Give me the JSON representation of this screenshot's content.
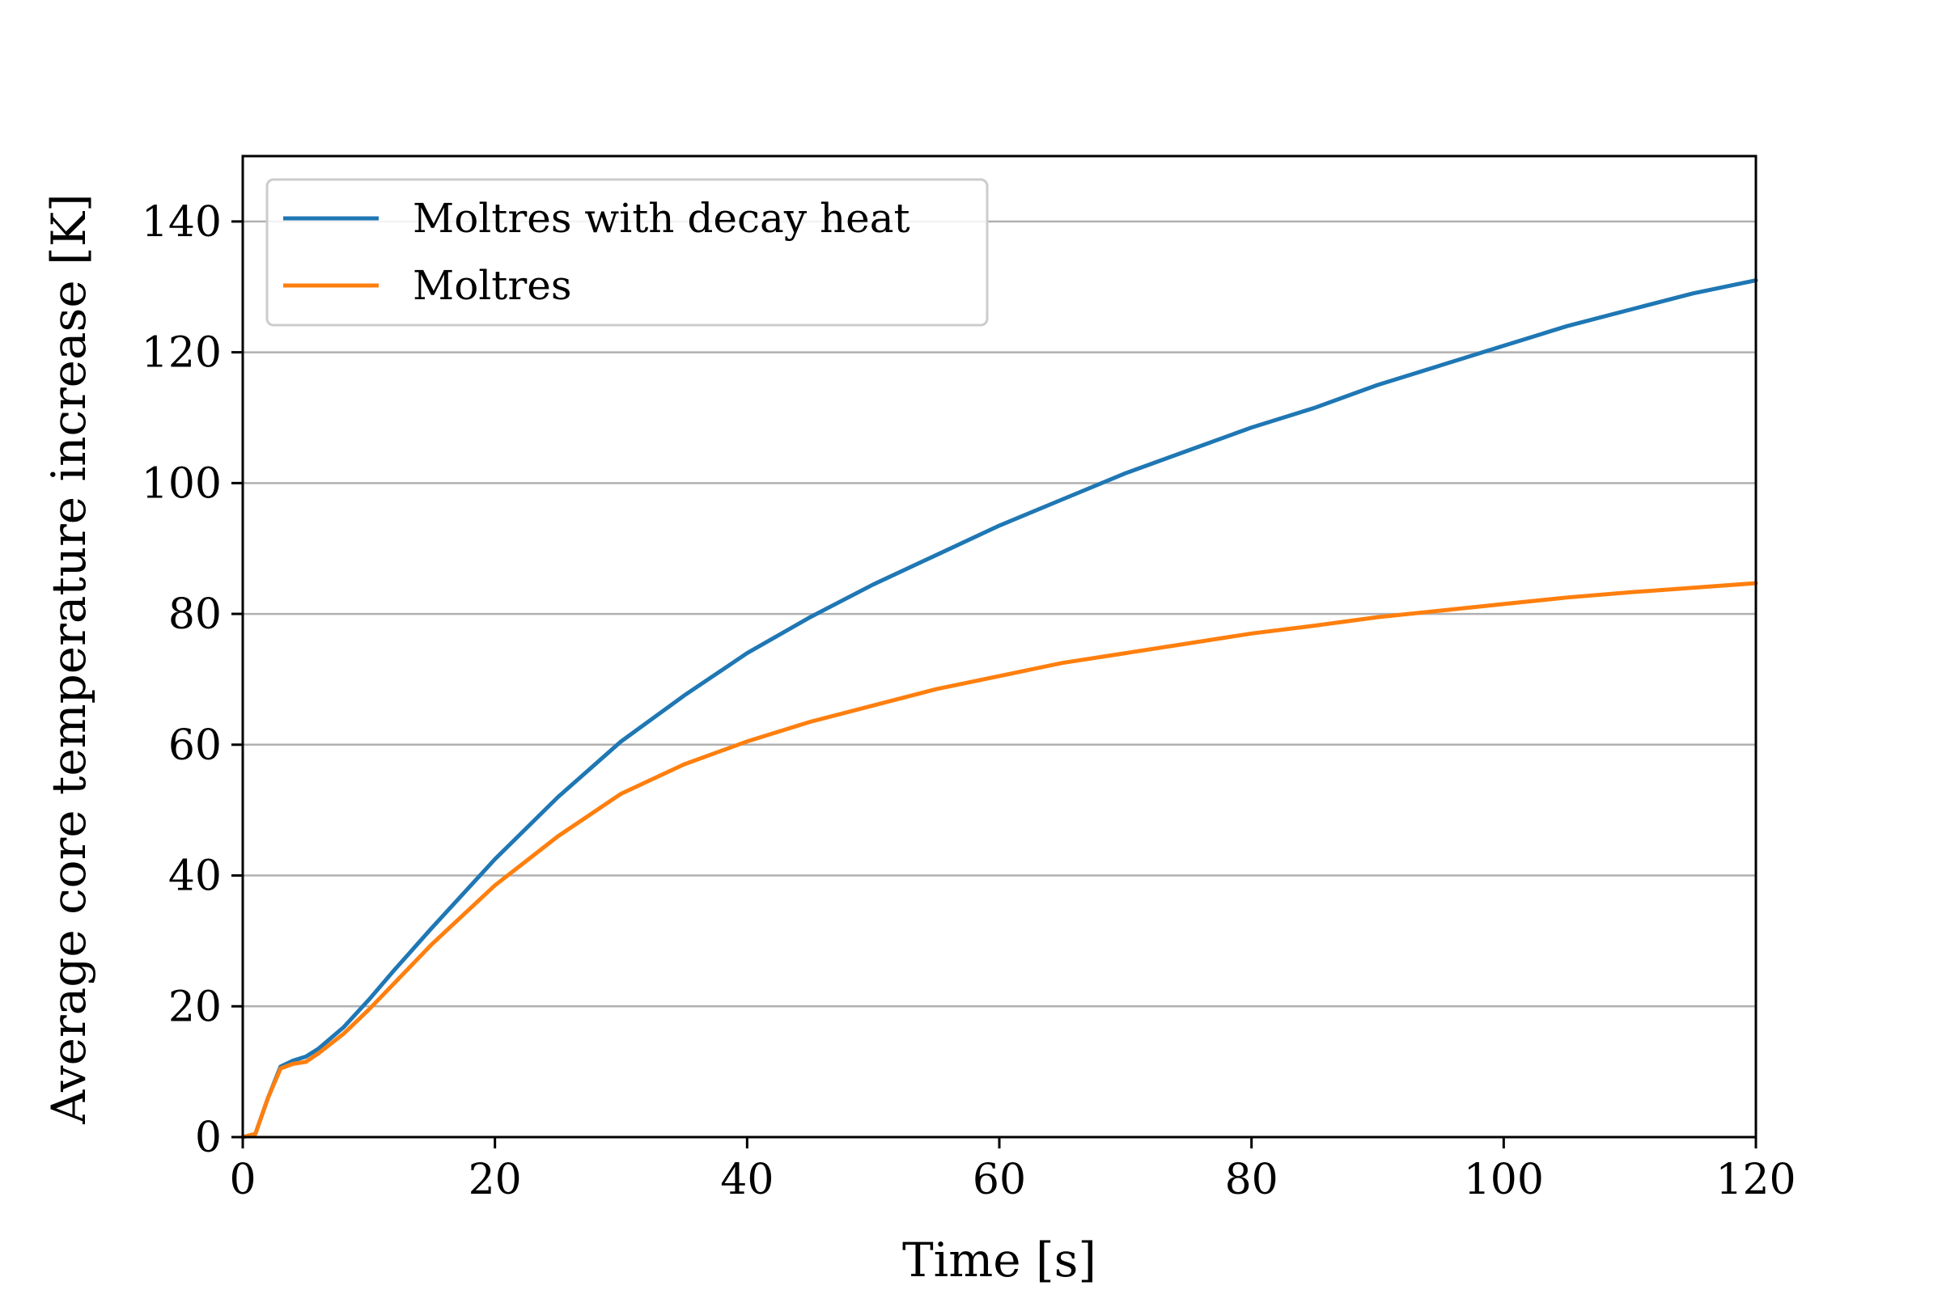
{
  "chart_data": {
    "type": "line",
    "title": "",
    "xlabel": "Time [s]",
    "ylabel": "Average core temperature increase [K]",
    "xlim": [
      0,
      120
    ],
    "ylim": [
      0,
      150
    ],
    "xticks": [
      0,
      20,
      40,
      60,
      80,
      100,
      120
    ],
    "yticks": [
      0,
      20,
      40,
      60,
      80,
      100,
      120,
      140
    ],
    "grid": "horizontal",
    "legend_position": "top-left",
    "series": [
      {
        "name": "Moltres with decay heat",
        "color": "#1f77b4",
        "x": [
          0,
          1,
          2,
          3,
          4,
          5,
          6,
          8,
          10,
          12,
          15,
          20,
          25,
          30,
          35,
          40,
          45,
          50,
          55,
          60,
          65,
          70,
          75,
          80,
          85,
          90,
          95,
          100,
          105,
          110,
          115,
          120
        ],
        "y": [
          0,
          0.5,
          6,
          10.8,
          11.7,
          12.3,
          13.5,
          16.8,
          21,
          25.5,
          32,
          42.5,
          52,
          60.5,
          67.5,
          74,
          79.5,
          84.5,
          89,
          93.5,
          97.5,
          101.5,
          105,
          108.5,
          111.5,
          115,
          118,
          121,
          124,
          126.5,
          129,
          131
        ]
      },
      {
        "name": "Moltres",
        "color": "#ff7f0e",
        "x": [
          0,
          1,
          2,
          3,
          4,
          5,
          6,
          8,
          10,
          12,
          15,
          20,
          25,
          30,
          35,
          40,
          45,
          50,
          55,
          60,
          65,
          70,
          75,
          80,
          85,
          90,
          95,
          100,
          105,
          110,
          115,
          120
        ],
        "y": [
          0,
          0.5,
          6,
          10.5,
          11.2,
          11.5,
          12.8,
          15.8,
          19.5,
          23.5,
          29.5,
          38.5,
          46,
          52.5,
          57,
          60.5,
          63.5,
          66,
          68.5,
          70.5,
          72.5,
          74,
          75.5,
          77,
          78.2,
          79.5,
          80.5,
          81.5,
          82.5,
          83.3,
          84,
          84.7
        ]
      }
    ]
  }
}
